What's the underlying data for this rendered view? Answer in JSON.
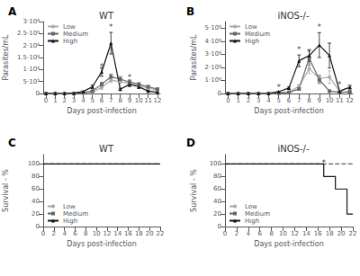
{
  "chart_data": [
    {
      "type": "line",
      "panel_label": "A",
      "title": "WT",
      "xlabel": "Days post-infection",
      "ylabel": "Parasites/mL",
      "x": [
        0,
        1,
        2,
        3,
        4,
        5,
        6,
        7,
        8,
        9,
        10,
        11,
        12
      ],
      "xlim": [
        -0.3,
        12.3
      ],
      "xticks": [
        0,
        1,
        2,
        3,
        4,
        5,
        6,
        7,
        8,
        9,
        10,
        11,
        12
      ],
      "ylim": [
        0,
        3000000
      ],
      "yticks": [
        0,
        {
          "value": 500000,
          "label": "5·10⁵"
        },
        {
          "value": 1000000,
          "label": "1·10⁶"
        },
        {
          "value": 1500000,
          "label": "1.5·10⁶"
        },
        {
          "value": 2000000,
          "label": "2·10⁶"
        },
        {
          "value": 2500000,
          "label": "2.5·10⁶"
        },
        {
          "value": 3000000,
          "label": "3·10⁶"
        }
      ],
      "grid": false,
      "legend": "upper left",
      "series": [
        {
          "name": "Low",
          "color": "#aaaaaa",
          "marker": "circle",
          "line_style": "solid",
          "values": [
            0,
            0,
            0,
            0,
            20000,
            50000,
            250000,
            550000,
            500000,
            420000,
            320000,
            220000,
            130000
          ],
          "error": [
            0,
            0,
            0,
            0,
            10000,
            20000,
            70000,
            90000,
            90000,
            70000,
            60000,
            40000,
            30000
          ]
        },
        {
          "name": "Medium",
          "color": "#666666",
          "marker": "square",
          "line_style": "solid",
          "values": [
            0,
            0,
            0,
            0,
            30000,
            100000,
            380000,
            700000,
            600000,
            480000,
            380000,
            280000,
            180000
          ],
          "error": [
            0,
            0,
            0,
            0,
            10000,
            30000,
            90000,
            110000,
            110000,
            90000,
            70000,
            50000,
            40000
          ]
        },
        {
          "name": "High",
          "color": "#111111",
          "marker": "triangle",
          "line_style": "solid",
          "values": [
            0,
            0,
            0,
            20000,
            80000,
            280000,
            900000,
            2100000,
            180000,
            380000,
            280000,
            100000,
            50000
          ],
          "error": [
            0,
            0,
            0,
            5000,
            20000,
            70000,
            180000,
            450000,
            40000,
            90000,
            70000,
            25000,
            15000
          ]
        }
      ],
      "annotations": [
        {
          "x": 6,
          "y": 950000,
          "text": "*"
        },
        {
          "x": 7,
          "y": 2620000,
          "text": "*"
        },
        {
          "x": 9,
          "y": 500000,
          "text": "*"
        }
      ]
    },
    {
      "type": "line",
      "panel_label": "B",
      "title": "iNOS-/-",
      "xlabel": "Days post-infection",
      "ylabel": "Parasites/mL",
      "x": [
        0,
        1,
        2,
        3,
        4,
        5,
        6,
        7,
        8,
        9,
        10,
        11,
        12
      ],
      "xlim": [
        -0.3,
        12.3
      ],
      "xticks": [
        0,
        1,
        2,
        3,
        4,
        5,
        6,
        7,
        8,
        9,
        10,
        11,
        12
      ],
      "ylim": [
        0,
        5500000
      ],
      "yticks": [
        0,
        {
          "value": 1000000,
          "label": "1·10⁶"
        },
        {
          "value": 2000000,
          "label": "2·10⁶"
        },
        {
          "value": 3000000,
          "label": "3·10⁶"
        },
        {
          "value": 4000000,
          "label": "4·10⁶"
        },
        {
          "value": 5000000,
          "label": "5·10⁶"
        }
      ],
      "grid": false,
      "legend": "upper left",
      "series": [
        {
          "name": "Low",
          "color": "#aaaaaa",
          "marker": "circle",
          "line_style": "solid",
          "values": [
            0,
            0,
            0,
            0,
            0,
            40000,
            120000,
            550000,
            1900000,
            1150000,
            1250000,
            180000,
            480000
          ],
          "error": [
            0,
            0,
            0,
            0,
            0,
            15000,
            40000,
            130000,
            380000,
            280000,
            480000,
            45000,
            140000
          ]
        },
        {
          "name": "Medium",
          "color": "#666666",
          "marker": "square",
          "line_style": "solid",
          "values": [
            0,
            0,
            0,
            0,
            0,
            25000,
            80000,
            350000,
            2700000,
            1050000,
            180000,
            90000,
            130000
          ],
          "error": [
            0,
            0,
            0,
            0,
            0,
            10000,
            25000,
            90000,
            550000,
            280000,
            45000,
            25000,
            35000
          ]
        },
        {
          "name": "High",
          "color": "#111111",
          "marker": "triangle",
          "line_style": "solid",
          "values": [
            0,
            0,
            0,
            0,
            18000,
            140000,
            420000,
            2500000,
            2900000,
            3700000,
            2900000,
            180000,
            480000
          ],
          "error": [
            0,
            0,
            0,
            0,
            4000,
            35000,
            90000,
            450000,
            450000,
            950000,
            950000,
            45000,
            140000
          ]
        }
      ],
      "annotations": [
        {
          "x": 5,
          "y": 200000,
          "text": "*"
        },
        {
          "x": 7,
          "y": 3050000,
          "text": "*"
        },
        {
          "x": 9,
          "y": 4750000,
          "text": "*"
        },
        {
          "x": 11,
          "y": 350000,
          "text": "*"
        }
      ]
    },
    {
      "type": "line",
      "panel_label": "C",
      "title": "WT",
      "xlabel": "Days post-infection",
      "ylabel": "Survival - %",
      "x": [
        0,
        22
      ],
      "xlim": [
        0,
        22
      ],
      "xticks": [
        0,
        2,
        4,
        6,
        8,
        10,
        12,
        14,
        16,
        18,
        20,
        22
      ],
      "ylim": [
        0,
        115
      ],
      "yticks": [
        0,
        20,
        40,
        60,
        80,
        100
      ],
      "grid": false,
      "legend": "lower left",
      "series": [
        {
          "name": "Low",
          "color": "#aaaaaa",
          "line_style": "dashed",
          "values": [
            100,
            100
          ]
        },
        {
          "name": "Medium",
          "color": "#666666",
          "line_style": "dashed",
          "values": [
            100,
            100
          ]
        },
        {
          "name": "High",
          "color": "#111111",
          "line_style": "solid",
          "values": [
            100,
            100
          ]
        }
      ]
    },
    {
      "type": "line",
      "panel_label": "D",
      "title": "iNOS-/-",
      "xlabel": "Days post-infection",
      "ylabel": "Survival - %",
      "x": [
        0,
        22
      ],
      "xlim": [
        0,
        22
      ],
      "xticks": [
        0,
        2,
        4,
        6,
        8,
        10,
        12,
        14,
        16,
        18,
        20,
        22
      ],
      "ylim": [
        0,
        115
      ],
      "yticks": [
        0,
        20,
        40,
        60,
        80,
        100
      ],
      "grid": false,
      "legend": "lower left",
      "series": [
        {
          "name": "Low",
          "color": "#aaaaaa",
          "line_style": "dashed",
          "values": [
            100,
            100
          ]
        },
        {
          "name": "Medium",
          "color": "#666666",
          "line_style": "dashed",
          "values": [
            100,
            100
          ]
        },
        {
          "name": "High",
          "color": "#111111",
          "line_style": "solid",
          "type": "step",
          "x": [
            0,
            17,
            19,
            21,
            22
          ],
          "values": [
            100,
            80,
            60,
            20,
            20
          ]
        }
      ],
      "annotations": [
        {
          "x": 17,
          "y": 95,
          "text": "*"
        }
      ]
    }
  ]
}
